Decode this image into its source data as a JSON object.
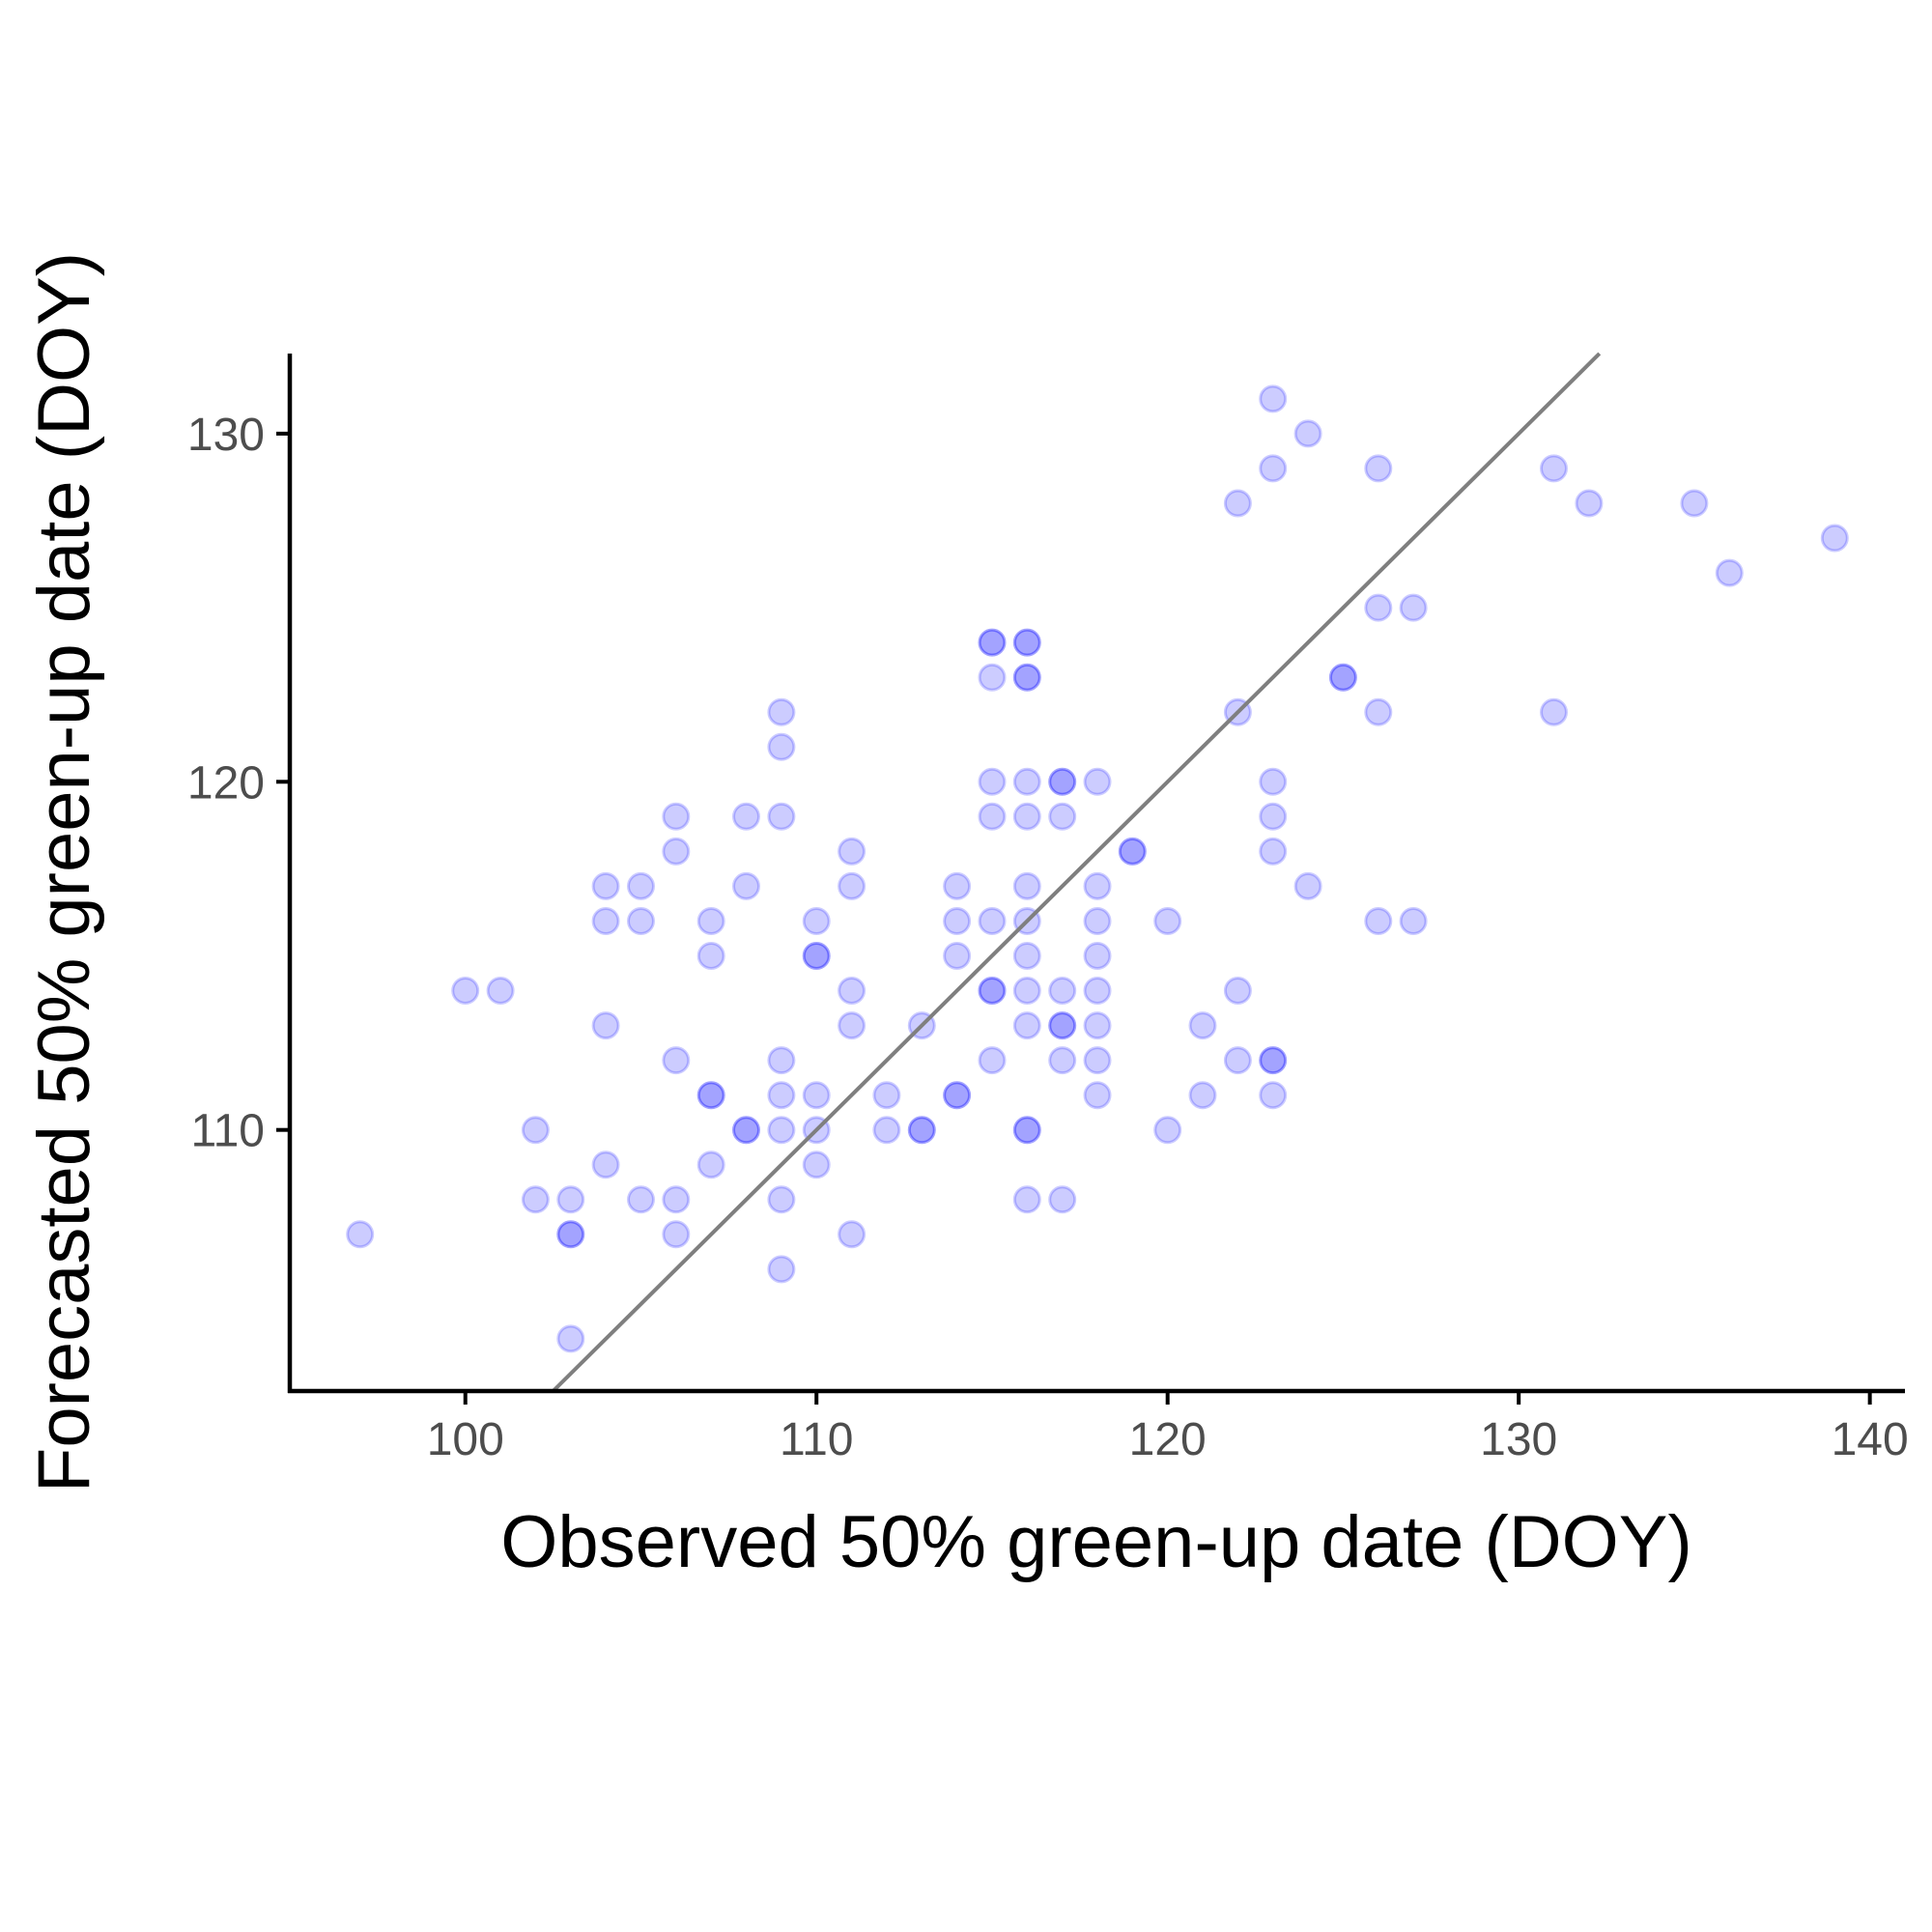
{
  "chart_data": {
    "type": "scatter",
    "title": "",
    "xlabel": "Observed 50% green-up date (DOY)",
    "ylabel": "Forecasted 50% green-up date (DOY)",
    "xlim": [
      95,
      141
    ],
    "ylim": [
      102.5,
      132.3
    ],
    "xticks": [
      "100",
      "110",
      "120",
      "130",
      "140"
    ],
    "yticks": [
      "110",
      "120",
      "130"
    ],
    "xtick_values": [
      100,
      110,
      120,
      130,
      140
    ],
    "ytick_values": [
      110,
      120,
      130
    ],
    "grid": false,
    "legend": "none",
    "point_color": "#0000ff",
    "point_opacity": 0.2,
    "reference_line": {
      "type": "1:1",
      "color": "#7f7f7f"
    },
    "points": [
      [
        97,
        107
      ],
      [
        100,
        114
      ],
      [
        101,
        114
      ],
      [
        102,
        110
      ],
      [
        102,
        108
      ],
      [
        103,
        108
      ],
      [
        103,
        107
      ],
      [
        103,
        107
      ],
      [
        103,
        104
      ],
      [
        104,
        117
      ],
      [
        104,
        116
      ],
      [
        104,
        113
      ],
      [
        104,
        109
      ],
      [
        105,
        117
      ],
      [
        105,
        116
      ],
      [
        105,
        108
      ],
      [
        106,
        119
      ],
      [
        106,
        118
      ],
      [
        106,
        112
      ],
      [
        106,
        108
      ],
      [
        106,
        107
      ],
      [
        107,
        116
      ],
      [
        107,
        115
      ],
      [
        107,
        111
      ],
      [
        107,
        111
      ],
      [
        107,
        109
      ],
      [
        108,
        119
      ],
      [
        108,
        117
      ],
      [
        108,
        110
      ],
      [
        108,
        110
      ],
      [
        109,
        122
      ],
      [
        109,
        121
      ],
      [
        109,
        119
      ],
      [
        109,
        112
      ],
      [
        109,
        111
      ],
      [
        109,
        110
      ],
      [
        109,
        108
      ],
      [
        109,
        106
      ],
      [
        110,
        116
      ],
      [
        110,
        115
      ],
      [
        110,
        115
      ],
      [
        110,
        111
      ],
      [
        110,
        110
      ],
      [
        110,
        109
      ],
      [
        111,
        118
      ],
      [
        111,
        117
      ],
      [
        111,
        114
      ],
      [
        111,
        113
      ],
      [
        111,
        107
      ],
      [
        112,
        111
      ],
      [
        112,
        110
      ],
      [
        113,
        113
      ],
      [
        113,
        110
      ],
      [
        113,
        110
      ],
      [
        114,
        117
      ],
      [
        114,
        116
      ],
      [
        114,
        115
      ],
      [
        114,
        111
      ],
      [
        114,
        111
      ],
      [
        115,
        124
      ],
      [
        115,
        124
      ],
      [
        115,
        123
      ],
      [
        115,
        120
      ],
      [
        115,
        119
      ],
      [
        115,
        116
      ],
      [
        115,
        114
      ],
      [
        115,
        114
      ],
      [
        115,
        112
      ],
      [
        116,
        124
      ],
      [
        116,
        124
      ],
      [
        116,
        123
      ],
      [
        116,
        123
      ],
      [
        116,
        120
      ],
      [
        116,
        119
      ],
      [
        116,
        117
      ],
      [
        116,
        116
      ],
      [
        116,
        115
      ],
      [
        116,
        114
      ],
      [
        116,
        113
      ],
      [
        116,
        110
      ],
      [
        116,
        110
      ],
      [
        116,
        108
      ],
      [
        117,
        120
      ],
      [
        117,
        120
      ],
      [
        117,
        119
      ],
      [
        117,
        114
      ],
      [
        117,
        113
      ],
      [
        117,
        113
      ],
      [
        117,
        112
      ],
      [
        117,
        108
      ],
      [
        118,
        120
      ],
      [
        118,
        117
      ],
      [
        118,
        116
      ],
      [
        118,
        115
      ],
      [
        118,
        114
      ],
      [
        118,
        113
      ],
      [
        118,
        112
      ],
      [
        118,
        111
      ],
      [
        119,
        118
      ],
      [
        119,
        118
      ],
      [
        120,
        116
      ],
      [
        120,
        110
      ],
      [
        121,
        113
      ],
      [
        121,
        111
      ],
      [
        122,
        128
      ],
      [
        122,
        122
      ],
      [
        122,
        114
      ],
      [
        122,
        112
      ],
      [
        123,
        131
      ],
      [
        123,
        129
      ],
      [
        123,
        120
      ],
      [
        123,
        119
      ],
      [
        123,
        118
      ],
      [
        123,
        112
      ],
      [
        123,
        112
      ],
      [
        123,
        111
      ],
      [
        124,
        130
      ],
      [
        124,
        117
      ],
      [
        125,
        123
      ],
      [
        125,
        123
      ],
      [
        126,
        129
      ],
      [
        126,
        125
      ],
      [
        126,
        122
      ],
      [
        126,
        116
      ],
      [
        127,
        125
      ],
      [
        127,
        116
      ],
      [
        131,
        129
      ],
      [
        131,
        122
      ],
      [
        132,
        128
      ],
      [
        135,
        128
      ],
      [
        136,
        126
      ],
      [
        139,
        127
      ]
    ]
  }
}
